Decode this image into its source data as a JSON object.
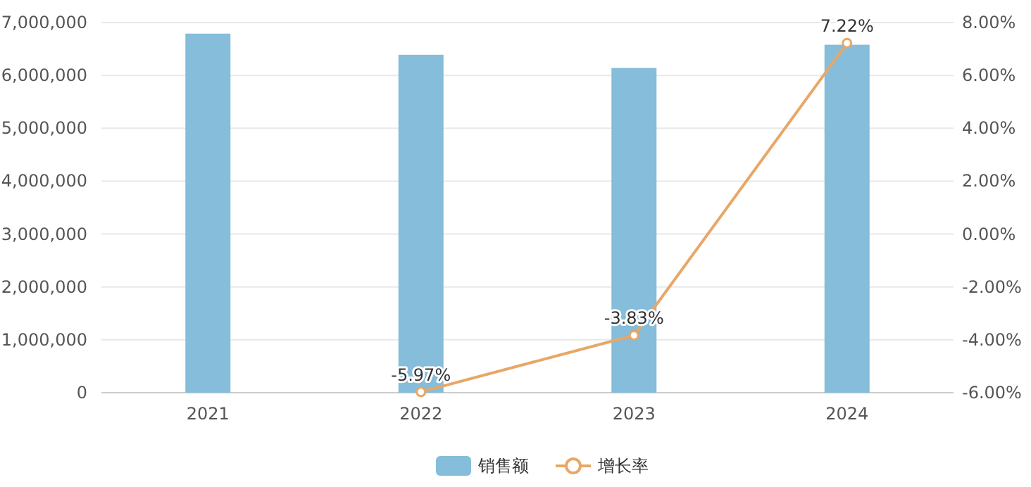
{
  "chart_data": {
    "type": "bar",
    "categories": [
      "2021",
      "2022",
      "2023",
      "2024"
    ],
    "series": [
      {
        "name": "销售额",
        "color": "#85bdda",
        "values": [
          6790000,
          6390000,
          6140000,
          6580000
        ]
      },
      {
        "name": "增长率",
        "type": "line",
        "axis": "y2",
        "color": "#e8a767",
        "marker": "circle",
        "values": [
          null,
          -5.97,
          -3.83,
          7.22
        ],
        "value_labels": [
          null,
          "-5.97%",
          "-3.83%",
          "7.22%"
        ]
      }
    ],
    "ylim": [
      0,
      7000000
    ],
    "yticks": [
      {
        "value": 0,
        "label": "0"
      },
      {
        "value": 1000000,
        "label": "1,000,000"
      },
      {
        "value": 2000000,
        "label": "2,000,000"
      },
      {
        "value": 3000000,
        "label": "3,000,000"
      },
      {
        "value": 4000000,
        "label": "4,000,000"
      },
      {
        "value": 5000000,
        "label": "5,000,000"
      },
      {
        "value": 6000000,
        "label": "6,000,000"
      },
      {
        "value": 7000000,
        "label": "7,000,000"
      }
    ],
    "y2lim": [
      -6,
      8
    ],
    "y2ticks": [
      {
        "value": -6,
        "label": "-6.00%"
      },
      {
        "value": -4,
        "label": "-4.00%"
      },
      {
        "value": -2,
        "label": "-2.00%"
      },
      {
        "value": 0,
        "label": "0.00%"
      },
      {
        "value": 2,
        "label": "2.00%"
      },
      {
        "value": 4,
        "label": "4.00%"
      },
      {
        "value": 6,
        "label": "6.00%"
      },
      {
        "value": 8,
        "label": "8.00%"
      }
    ],
    "grid": "y",
    "legend": "bottom"
  }
}
